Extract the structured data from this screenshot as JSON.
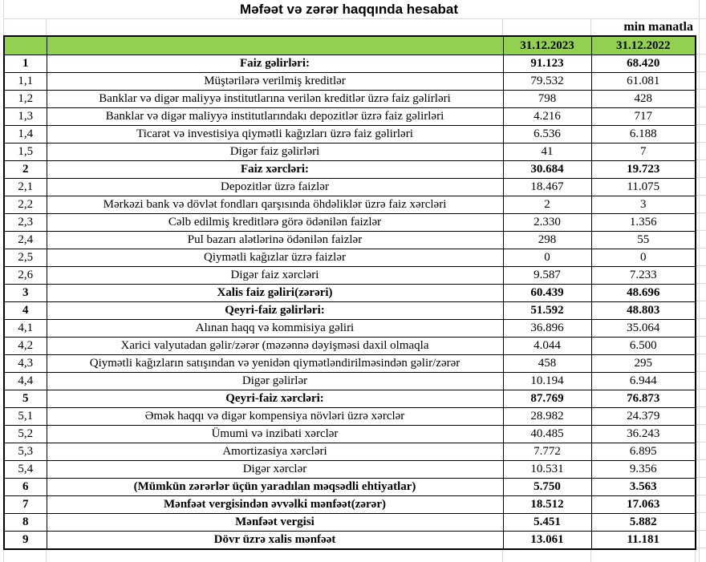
{
  "title": "Məfəət və zərər haqqında hesabat",
  "unit_note": "min manatla",
  "colors": {
    "header_green": "#92d050",
    "border": "#000000",
    "gridline": "#d9d9d9"
  },
  "table": {
    "headers": {
      "col_2023": "31.12.2023",
      "col_2022": "31.12.2022"
    },
    "rows": [
      {
        "no": "1",
        "label": "Faiz gəlirləri:",
        "v2023": "91.123",
        "v2022": "68.420",
        "bold": true
      },
      {
        "no": "1,1",
        "label": "Müştərilərə verilmiş kreditlər",
        "v2023": "79.532",
        "v2022": "61.081",
        "bold": false
      },
      {
        "no": "1,2",
        "label": "Banklar və digər maliyyə institutlarına verilən kreditlər üzrə faiz gəlirləri",
        "v2023": "798",
        "v2022": "428",
        "bold": false
      },
      {
        "no": "1,3",
        "label": "Banklar və digər maliyyə institutlarındakı depozitlər üzrə faiz gəlirləri",
        "v2023": "4.216",
        "v2022": "717",
        "bold": false
      },
      {
        "no": "1,4",
        "label": "Ticarət və investisiya qiymətli kağızları üzrə faiz gəlirləri",
        "v2023": "6.536",
        "v2022": "6.188",
        "bold": false
      },
      {
        "no": "1,5",
        "label": "Digər faiz gəlirləri",
        "v2023": "41",
        "v2022": "7",
        "bold": false
      },
      {
        "no": "2",
        "label": "Faiz xərcləri:",
        "v2023": "30.684",
        "v2022": "19.723",
        "bold": true
      },
      {
        "no": "2,1",
        "label": "Depozitlər üzrə faizlər",
        "v2023": "18.467",
        "v2022": "11.075",
        "bold": false
      },
      {
        "no": "2,2",
        "label": "Mərkəzi bank və dövlət fondları qarşısında öhdəliklər üzrə faiz xərcləri",
        "v2023": "2",
        "v2022": "3",
        "bold": false
      },
      {
        "no": "2,3",
        "label": "Cəlb edilmiş kreditlərə görə ödənilən faizlər",
        "v2023": "2.330",
        "v2022": "1.356",
        "bold": false
      },
      {
        "no": "2,4",
        "label": "Pul bazarı alətlərinə ödənilən faizlər",
        "v2023": "298",
        "v2022": "55",
        "bold": false
      },
      {
        "no": "2,5",
        "label": "Qiymətli kağızlar üzrə faizlər",
        "v2023": "0",
        "v2022": "0",
        "bold": false
      },
      {
        "no": "2,6",
        "label": "Digər faiz xərcləri",
        "v2023": "9.587",
        "v2022": "7.233",
        "bold": false
      },
      {
        "no": "3",
        "label": "Xalis faiz gəliri(zərəri)",
        "v2023": "60.439",
        "v2022": "48.696",
        "bold": true
      },
      {
        "no": "4",
        "label": "Qeyri-faiz gəlirləri:",
        "v2023": "51.592",
        "v2022": "48.803",
        "bold": true
      },
      {
        "no": "4,1",
        "label": "Alınan haqq və kommisiya gəliri",
        "v2023": "36.896",
        "v2022": "35.064",
        "bold": false
      },
      {
        "no": "4,2",
        "label": "Xarici valyutadan gəlir/zərər (məzənnə dəyişməsi daxil olmaqla",
        "v2023": "4.044",
        "v2022": "6.500",
        "bold": false
      },
      {
        "no": "4,3",
        "label": "Qiymətli kağızların satışından və yenidən qiymətləndirilməsindən gəlir/zərər",
        "v2023": "458",
        "v2022": "295",
        "bold": false
      },
      {
        "no": "4,4",
        "label": "Digər gəlirlər",
        "v2023": "10.194",
        "v2022": "6.944",
        "bold": false
      },
      {
        "no": "5",
        "label": "Qeyri-faiz xərcləri:",
        "v2023": "87.769",
        "v2022": "76.873",
        "bold": true
      },
      {
        "no": "5,1",
        "label": "Əmək haqqı və digər kompensiya növləri üzrə xərclər",
        "v2023": "28.982",
        "v2022": "24.379",
        "bold": false
      },
      {
        "no": "5,2",
        "label": "Ümumi və inzibati xərclər",
        "v2023": "40.485",
        "v2022": "36.243",
        "bold": false
      },
      {
        "no": "5,3",
        "label": "Amortizasiya xərcləri",
        "v2023": "7.772",
        "v2022": "6.895",
        "bold": false
      },
      {
        "no": "5,4",
        "label": "Digər xərclər",
        "v2023": "10.531",
        "v2022": "9.356",
        "bold": false
      },
      {
        "no": "6",
        "label": "(Mümkün zərərlər üçün yaradılan məqsədli ehtiyatlar)",
        "v2023": "5.750",
        "v2022": "3.563",
        "bold": true
      },
      {
        "no": "7",
        "label": "Mənfəət vergisindən əvvəlki mənfəət(zərər)",
        "v2023": "18.512",
        "v2022": "17.063",
        "bold": true
      },
      {
        "no": "8",
        "label": "Mənfəət vergisi",
        "v2023": "5.451",
        "v2022": "5.882",
        "bold": true
      },
      {
        "no": "9",
        "label": "Dövr üzrə xalis mənfəət",
        "v2023": "13.061",
        "v2022": "11.181",
        "bold": true
      }
    ]
  }
}
